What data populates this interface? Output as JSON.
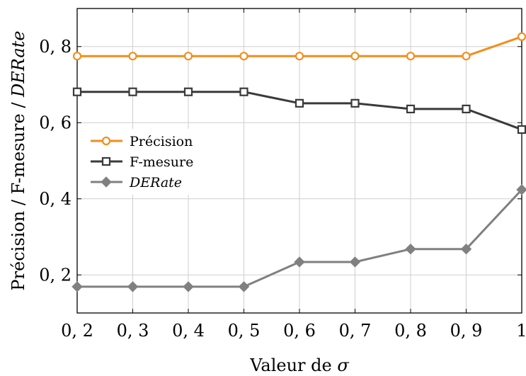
{
  "chart_data": {
    "type": "line",
    "x": [
      0.2,
      0.3,
      0.4,
      0.5,
      0.6,
      0.7,
      0.8,
      0.9,
      1.0
    ],
    "x_tick_labels": [
      "0, 2",
      "0, 3",
      "0, 4",
      "0, 5",
      "0, 6",
      "0, 7",
      "0, 8",
      "0, 9",
      "1"
    ],
    "y_ticks": [
      0.2,
      0.4,
      0.6,
      0.8
    ],
    "y_tick_labels": [
      "0, 2",
      "0, 4",
      "0, 6",
      "0, 8"
    ],
    "xlim": [
      0.2,
      1.0
    ],
    "ylim": [
      0.1,
      0.9
    ],
    "xlabel_prefix": "Valeur de ",
    "xlabel_symbol": "σ",
    "ylabel_parts": [
      "Précision / F-mesure / ",
      "DERate"
    ],
    "grid": true,
    "legend_position": "center-left",
    "series": [
      {
        "name": "Précision",
        "color": "#f28e1c",
        "marker": "circle",
        "values": [
          0.775,
          0.775,
          0.775,
          0.775,
          0.775,
          0.775,
          0.775,
          0.775,
          0.826
        ]
      },
      {
        "name": "F-mesure",
        "color": "#3a3a3a",
        "marker": "square",
        "values": [
          0.681,
          0.681,
          0.681,
          0.681,
          0.651,
          0.651,
          0.636,
          0.636,
          0.582
        ]
      },
      {
        "name": "DERate",
        "color": "#808080",
        "marker": "diamond",
        "italic": true,
        "values": [
          0.169,
          0.169,
          0.169,
          0.169,
          0.234,
          0.234,
          0.268,
          0.268,
          0.424
        ]
      }
    ]
  }
}
